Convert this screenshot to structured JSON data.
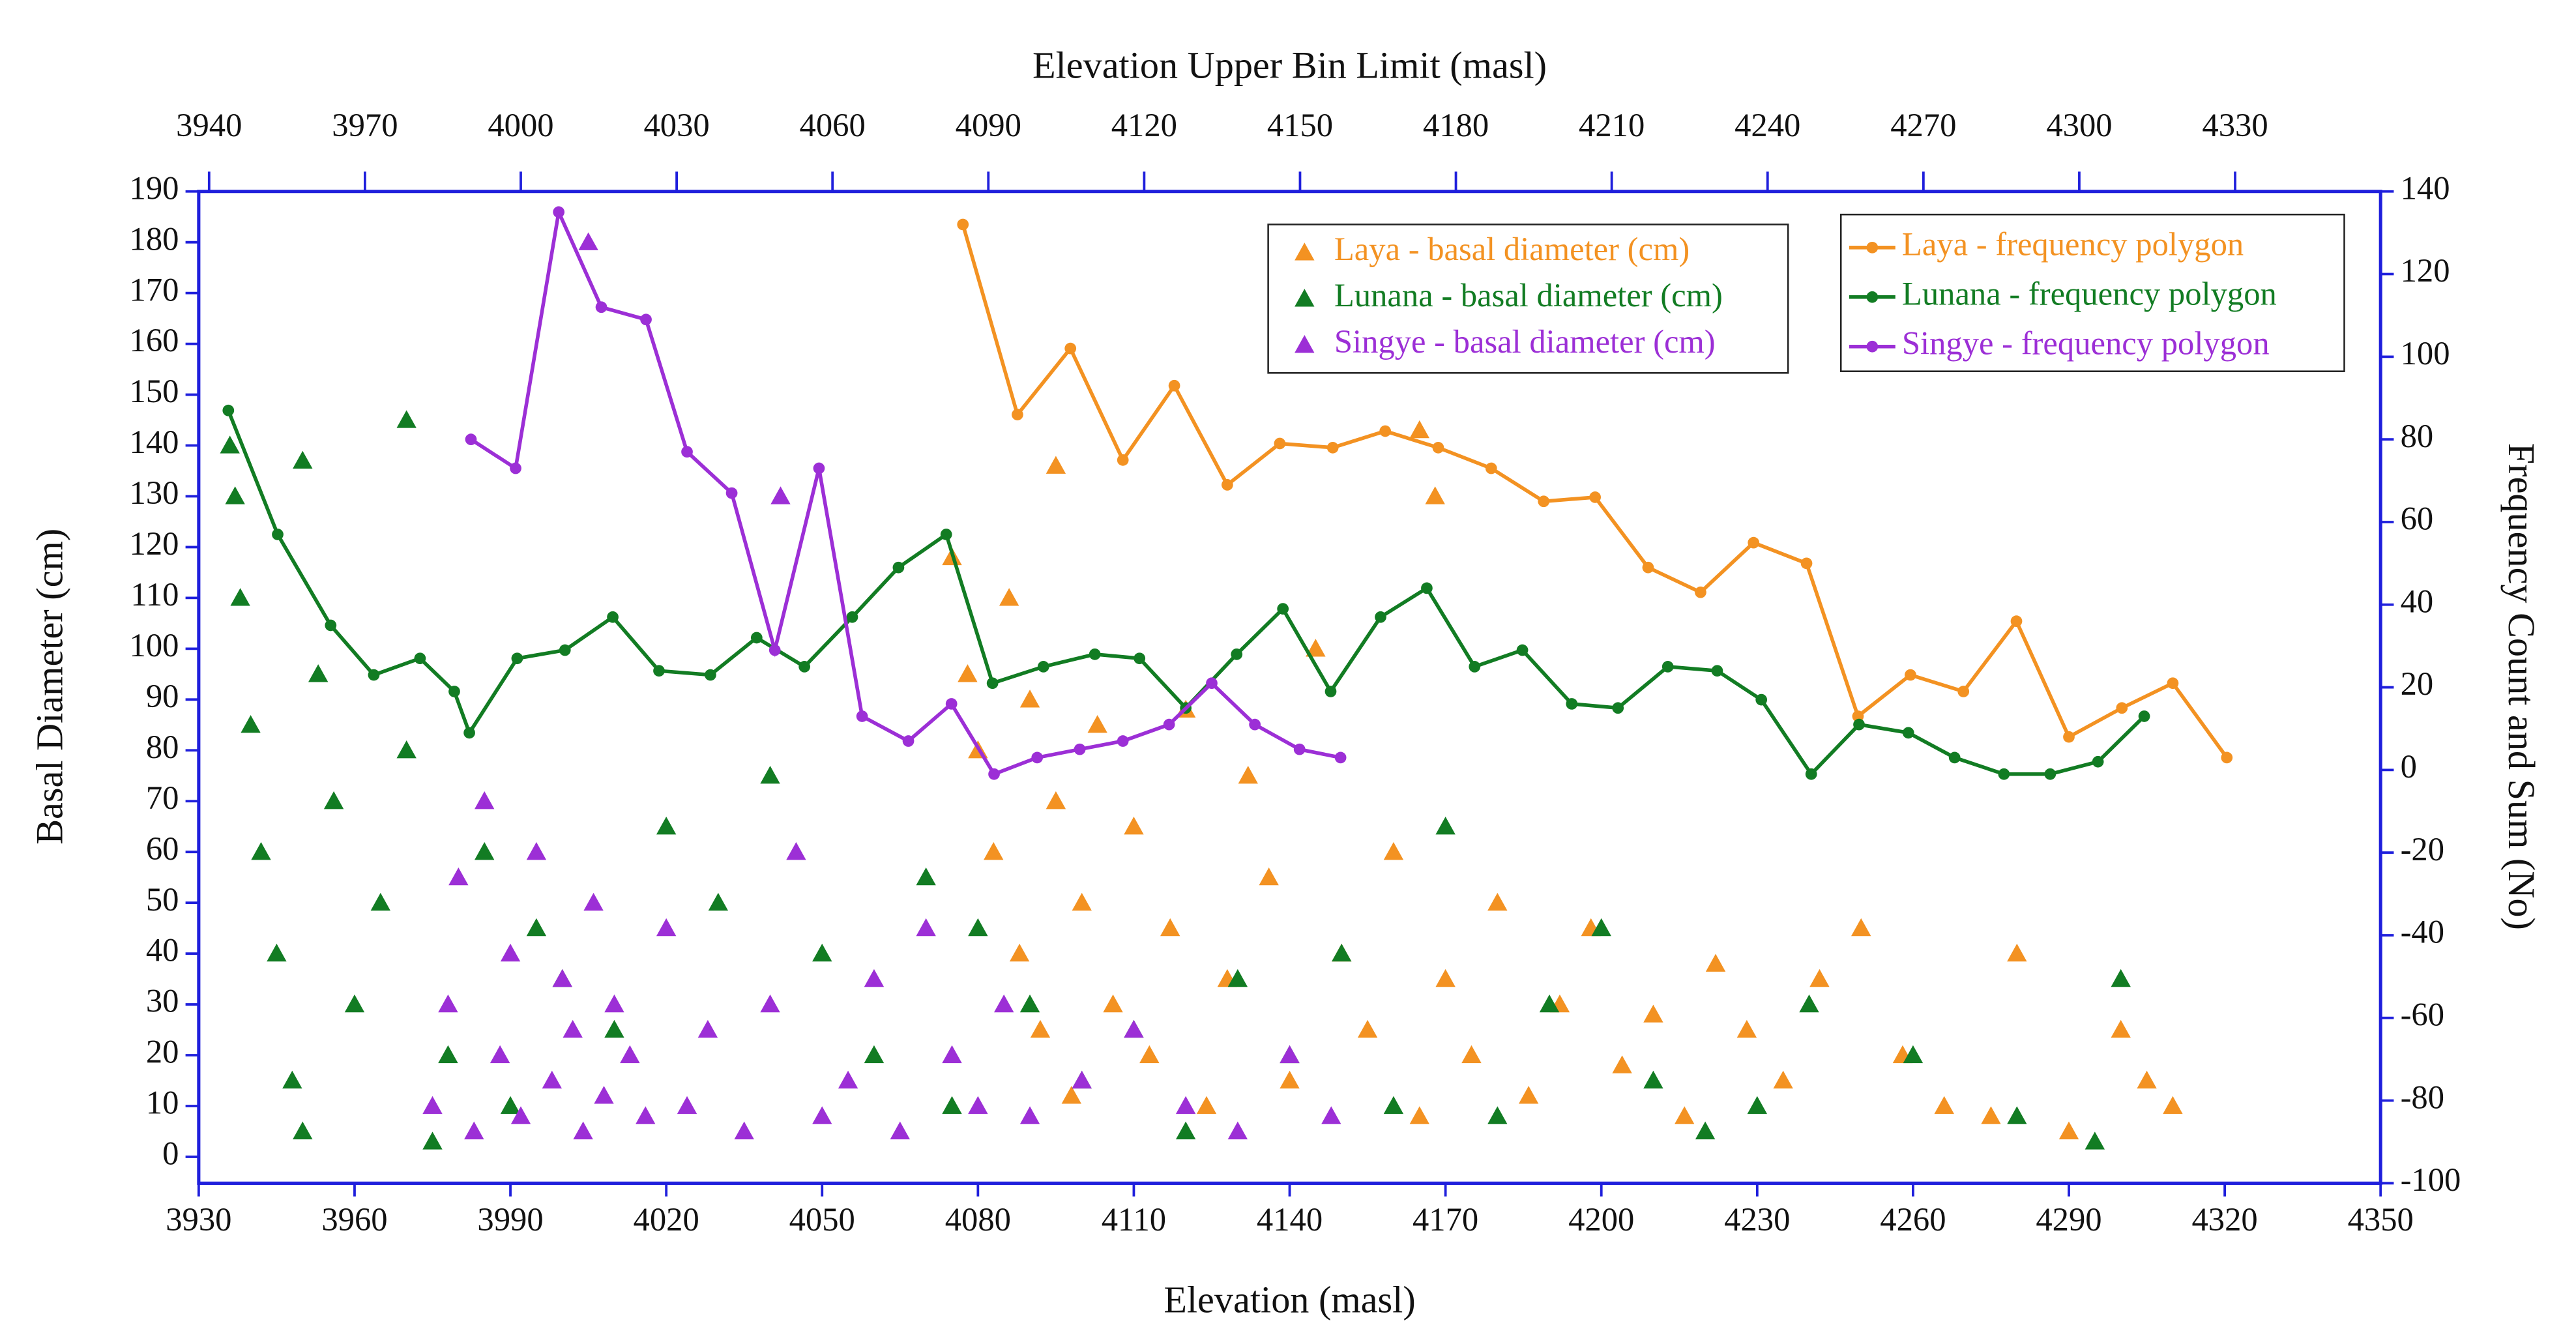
{
  "chart_data": {
    "type": "scatter",
    "xlabel": "Elevation (masl)",
    "x2label": "Elevation Upper Bin Limit (masl)",
    "ylabel": "Basal Diameter (cm)",
    "y2label": "Frequency Count and Sum (No)",
    "xlim": [
      3930,
      4350
    ],
    "xticks": [
      3930,
      3960,
      3990,
      4020,
      4050,
      4080,
      4110,
      4140,
      4170,
      4200,
      4230,
      4260,
      4290,
      4320,
      4350
    ],
    "x2lim": [
      3938,
      4358
    ],
    "x2ticks": [
      3940,
      3970,
      4000,
      4030,
      4060,
      4090,
      4120,
      4150,
      4180,
      4210,
      4240,
      4270,
      4300,
      4330
    ],
    "ylim": [
      -5.2,
      190
    ],
    "yticks": [
      0,
      10,
      20,
      30,
      40,
      50,
      60,
      70,
      80,
      90,
      100,
      110,
      120,
      130,
      140,
      150,
      160,
      170,
      180,
      190
    ],
    "y2lim": [
      -100,
      140
    ],
    "y2ticks": [
      -100,
      -80,
      -60,
      -40,
      -20,
      0,
      20,
      40,
      60,
      80,
      100,
      120,
      140
    ],
    "series": [
      {
        "name": "Laya - basal diameter (cm)",
        "type": "scatter",
        "color": "#f39222",
        "x": [
          4075,
          4078,
          4080,
          4083,
          4086,
          4088,
          4090,
          4092,
          4095,
          4098,
          4100,
          4103,
          4106,
          4110,
          4113,
          4117,
          4120,
          4124,
          4128,
          4132,
          4136,
          4140,
          4145,
          4150,
          4155,
          4160,
          4165,
          4170,
          4175,
          4180,
          4186,
          4192,
          4198,
          4204,
          4210,
          4216,
          4222,
          4228,
          4235,
          4242,
          4250,
          4258,
          4266,
          4275,
          4280,
          4290,
          4300,
          4305,
          4310,
          4165,
          4095,
          4168
        ],
        "values": [
          118,
          95,
          80,
          60,
          110,
          40,
          90,
          25,
          70,
          12,
          50,
          85,
          30,
          65,
          20,
          45,
          88,
          10,
          35,
          75,
          55,
          15,
          100,
          40,
          25,
          60,
          8,
          35,
          20,
          50,
          12,
          30,
          45,
          18,
          28,
          8,
          38,
          25,
          15,
          35,
          45,
          20,
          10,
          8,
          40,
          5,
          25,
          15,
          10,
          143,
          136,
          130
        ]
      },
      {
        "name": "Lunana - basal diameter (cm)",
        "type": "scatter",
        "color": "#127c23",
        "x": [
          3936,
          3937,
          3938,
          3940,
          3942,
          3945,
          3948,
          3950,
          3953,
          3956,
          3960,
          3965,
          3970,
          3975,
          3978,
          3985,
          3990,
          3995,
          4000,
          4010,
          4020,
          4030,
          4040,
          4050,
          4060,
          4070,
          4075,
          4080,
          4090,
          4100,
          4110,
          4120,
          4130,
          4140,
          4150,
          4160,
          4170,
          4180,
          4190,
          4200,
          4210,
          4220,
          4230,
          4240,
          4260,
          4280,
          4295,
          4300,
          3970,
          3950
        ],
        "values": [
          140,
          130,
          110,
          85,
          60,
          40,
          15,
          5,
          95,
          70,
          30,
          50,
          80,
          3,
          20,
          60,
          10,
          45,
          35,
          25,
          65,
          50,
          75,
          40,
          20,
          55,
          10,
          45,
          30,
          15,
          25,
          5,
          35,
          20,
          40,
          10,
          65,
          8,
          30,
          45,
          15,
          5,
          10,
          30,
          20,
          8,
          3,
          35,
          145,
          137
        ]
      },
      {
        "name": "Singye - basal diameter (cm)",
        "type": "scatter",
        "color": "#9c2fd6",
        "x": [
          3975,
          3978,
          3980,
          3983,
          3985,
          3988,
          3990,
          3992,
          3995,
          3998,
          4000,
          4002,
          4004,
          4006,
          4008,
          4010,
          4013,
          4016,
          4020,
          4024,
          4028,
          4035,
          4040,
          4045,
          4050,
          4055,
          4060,
          4065,
          4070,
          4075,
          4080,
          4085,
          4090,
          4100,
          4110,
          4120,
          4130,
          4140,
          4148,
          4005,
          4042
        ],
        "values": [
          10,
          30,
          55,
          5,
          70,
          20,
          40,
          8,
          60,
          15,
          35,
          25,
          5,
          50,
          12,
          30,
          20,
          8,
          45,
          10,
          25,
          5,
          30,
          60,
          8,
          15,
          35,
          5,
          45,
          20,
          10,
          30,
          8,
          15,
          25,
          10,
          5,
          20,
          8,
          180,
          130
        ]
      },
      {
        "name": "Laya - frequency polygon",
        "type": "line",
        "axis": "y2",
        "color": "#f39222",
        "x": [
          4077.1,
          4087.6,
          4097.8,
          4107.9,
          4117.8,
          4128,
          4138.1,
          4148.3,
          4158.4,
          4168.6,
          4178.8,
          4188.9,
          4198.8,
          4209,
          4219.1,
          4229.3,
          4239.5,
          4249.4,
          4259.5,
          4269.7,
          4279.9,
          4290,
          4300.2,
          4310,
          4320.4
        ],
        "values": [
          132,
          86,
          102,
          75,
          93,
          69,
          79,
          78,
          82,
          78,
          73,
          65,
          66,
          49,
          43,
          55,
          50,
          13,
          23,
          19,
          36,
          8,
          15,
          21,
          3
        ]
      },
      {
        "name": "Lunana - frequency polygon",
        "type": "line",
        "axis": "y2",
        "color": "#127c23",
        "x": [
          3935.7,
          3945.2,
          3955.4,
          3963.7,
          3972.6,
          3979.2,
          3982.1,
          3991.3,
          4000.5,
          4009.7,
          4018.6,
          4028.5,
          4037.4,
          4046.6,
          4055.8,
          4064.7,
          4073.9,
          4082.8,
          4092.6,
          4102.5,
          4111.1,
          4120,
          4129.8,
          4138.7,
          4147.9,
          4157.5,
          4166.4,
          4175.6,
          4184.8,
          4194.3,
          4203.2,
          4212.8,
          4222.3,
          4230.8,
          4240.4,
          4249.6,
          4259.1,
          4268,
          4277.5,
          4286.4,
          4295.6,
          4304.5
        ],
        "values": [
          87,
          57,
          35,
          23,
          27,
          19,
          9,
          27,
          29,
          37,
          24,
          23,
          32,
          25,
          37,
          49,
          57,
          21,
          25,
          28,
          27,
          15,
          28,
          39,
          19,
          37,
          44,
          25,
          29,
          16,
          15,
          25,
          24,
          17,
          -1,
          11,
          9,
          3,
          -1,
          -1,
          2,
          13
        ]
      },
      {
        "name": "Singye - frequency polygon",
        "type": "line",
        "axis": "y2",
        "color": "#9c2fd6",
        "x": [
          3982.4,
          3991,
          3999.3,
          4007.5,
          4016.1,
          4024,
          4032.6,
          4040.9,
          4049.4,
          4057.7,
          4066.6,
          4074.9,
          4083.1,
          4091.4,
          4099.6,
          4107.9,
          4116.8,
          4125,
          4133.3,
          4141.9,
          4149.8
        ],
        "values": [
          80,
          73,
          135,
          112,
          109,
          77,
          67,
          29,
          73,
          13,
          7,
          16,
          -1,
          3,
          5,
          7,
          11,
          21,
          11,
          5,
          3
        ]
      }
    ]
  }
}
